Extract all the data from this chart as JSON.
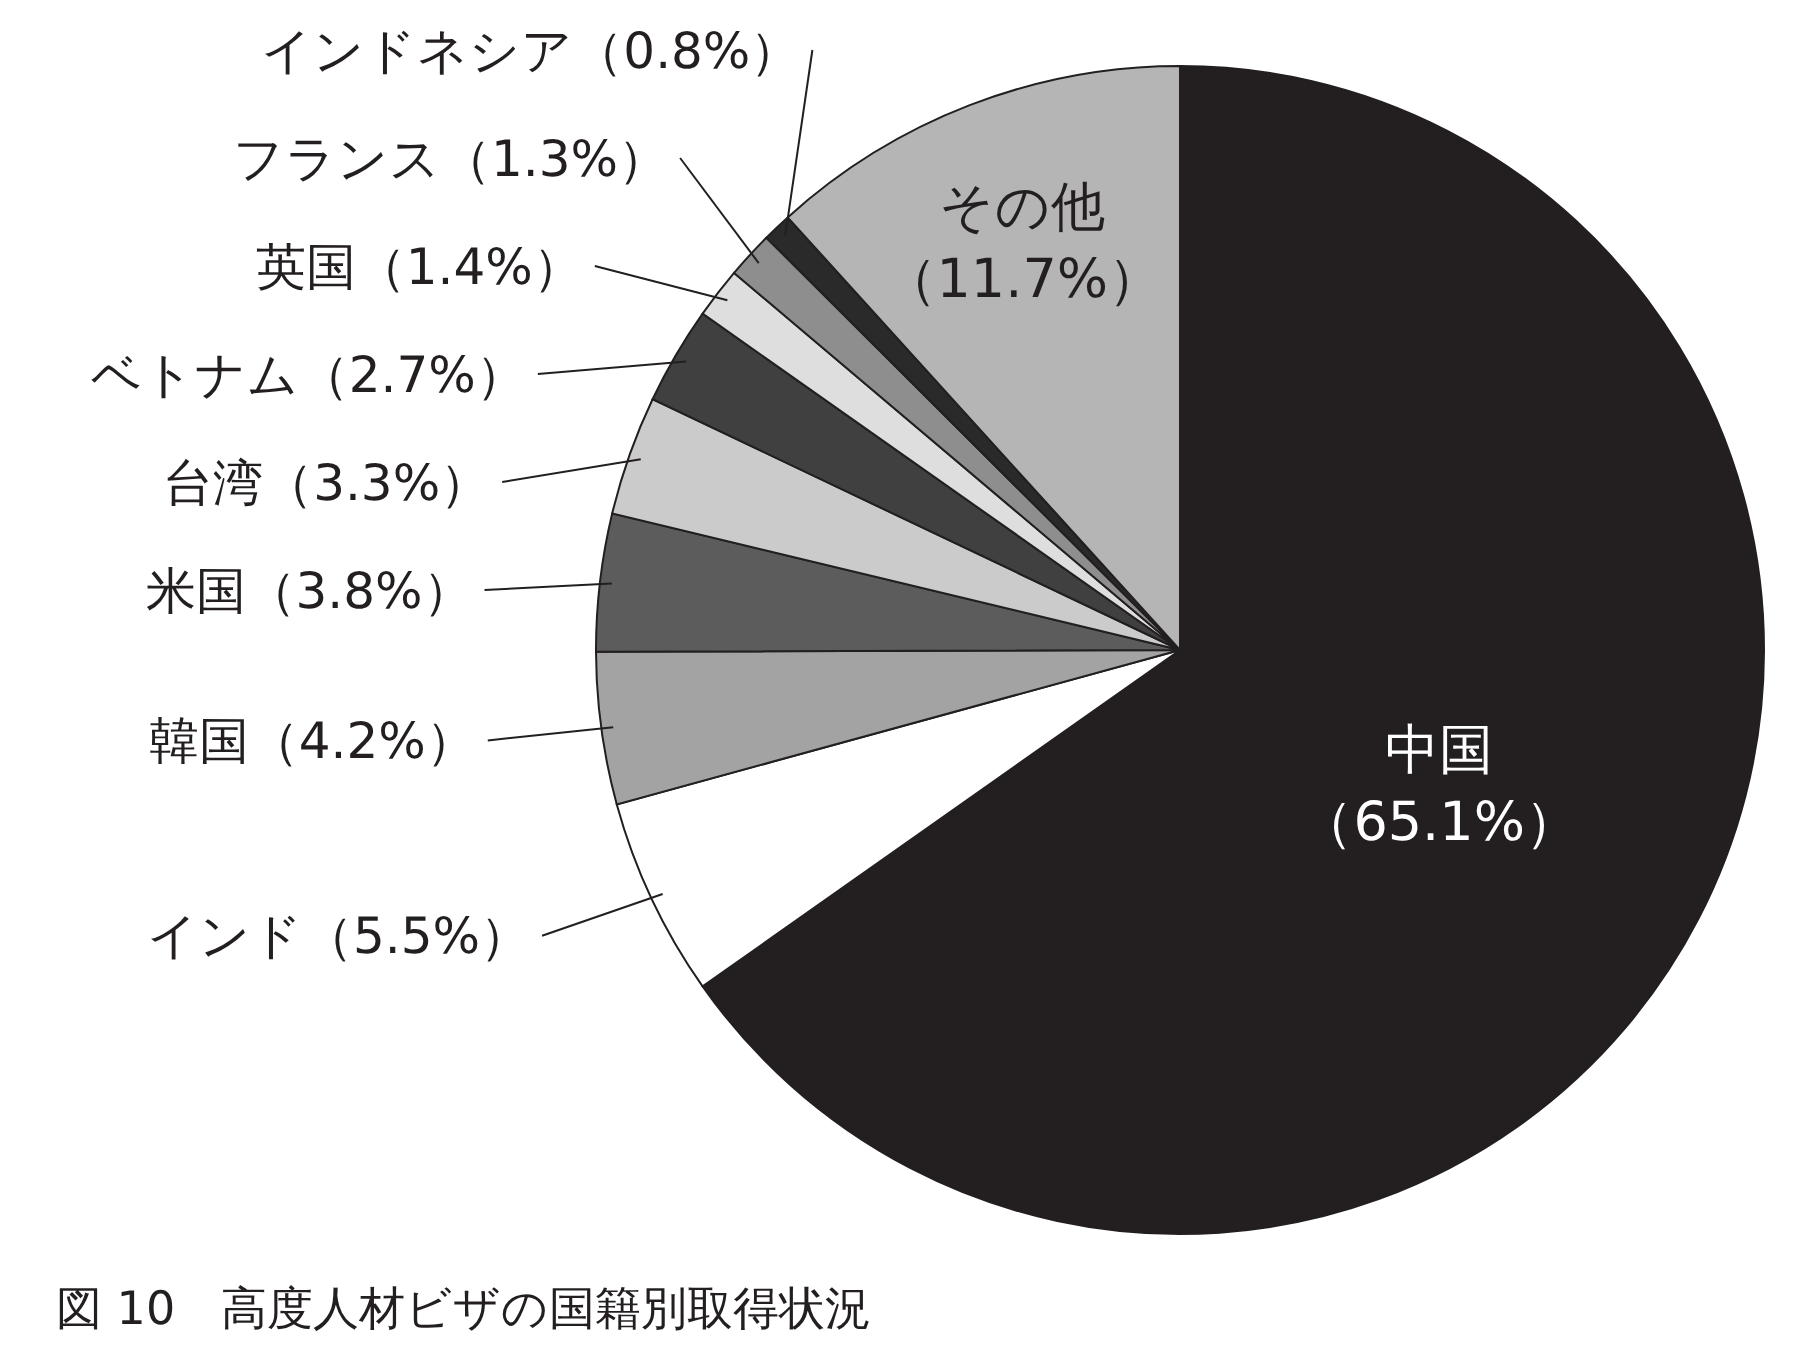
{
  "chart_data": {
    "type": "pie",
    "title": "図 10　高度人材ビザの国籍別取得状況",
    "categories": [
      "中国",
      "インド",
      "韓国",
      "米国",
      "台湾",
      "ベトナム",
      "英国",
      "フランス",
      "インドネシア",
      "その他"
    ],
    "values": [
      65.1,
      5.5,
      4.2,
      3.8,
      3.3,
      2.7,
      1.4,
      1.3,
      0.8,
      11.7
    ],
    "value_labels": [
      "（65.1%）",
      "（5.5%）",
      "（4.2%）",
      "（3.8%）",
      "（3.3%）",
      "（2.7%）",
      "（1.4%）",
      "（1.3%）",
      "（0.8%）",
      "（11.7%）"
    ],
    "colors": [
      "#231f20",
      "#ffffff",
      "#a3a3a3",
      "#5c5c5c",
      "#cbcbcb",
      "#404040",
      "#dedede",
      "#8e8e8e",
      "#2a2a2a",
      "#b5b5b5"
    ]
  }
}
